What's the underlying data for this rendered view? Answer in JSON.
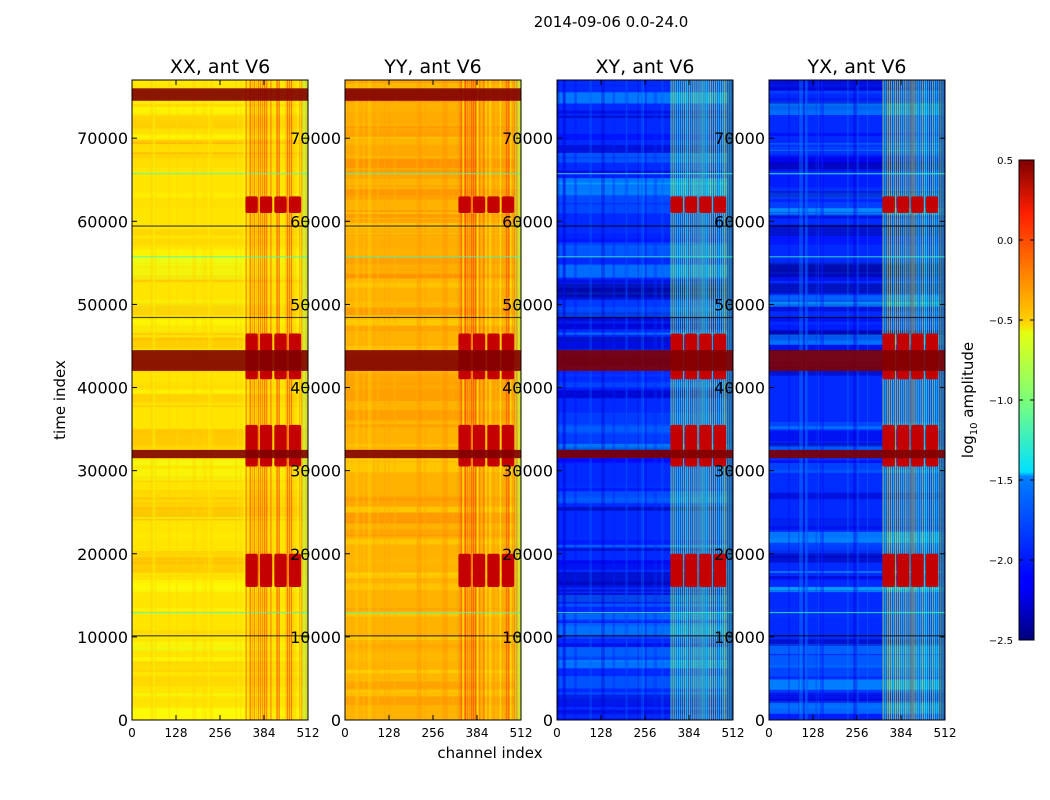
{
  "chart_data": {
    "type": "heatmap",
    "title": "2014-09-06 0.0-24.0",
    "xlabel": "channel index",
    "ylabel": "time index",
    "xlim": [
      0,
      512
    ],
    "ylim": [
      0,
      77000
    ],
    "x_ticks": [
      0,
      128,
      256,
      384,
      512
    ],
    "y_ticks": [
      0,
      10000,
      20000,
      30000,
      40000,
      50000,
      60000,
      70000
    ],
    "panels": [
      {
        "name": "XX",
        "title": "XX, ant V6",
        "base_level": -0.55
      },
      {
        "name": "YY",
        "title": "YY, ant V6",
        "base_level": -0.4
      },
      {
        "name": "XY",
        "title": "XY, ant V6",
        "base_level": -2.0
      },
      {
        "name": "YX",
        "title": "YX, ant V6",
        "base_level": -2.0
      }
    ],
    "high_rows": [
      {
        "from": 74500,
        "to": 76000
      },
      {
        "from": 42000,
        "to": 44500
      },
      {
        "from": 31500,
        "to": 32500
      }
    ],
    "burst_rows": [
      {
        "from": 61000,
        "to": 63000
      },
      {
        "from": 41000,
        "to": 46500
      },
      {
        "from": 30500,
        "to": 35500
      },
      {
        "from": 16000,
        "to": 20000
      }
    ],
    "burst_channels": [
      330,
      512
    ],
    "colorbar": {
      "label": "log10 amplitude",
      "range": [
        -2.5,
        0.5
      ],
      "ticks": [
        0.5,
        0.0,
        -0.5,
        -1.0,
        -1.5,
        -2.0,
        -2.5
      ],
      "tick_labels": [
        "0.5",
        "0.0",
        "−0.5",
        "−1.0",
        "−1.5",
        "−2.0",
        "−2.5"
      ]
    }
  }
}
